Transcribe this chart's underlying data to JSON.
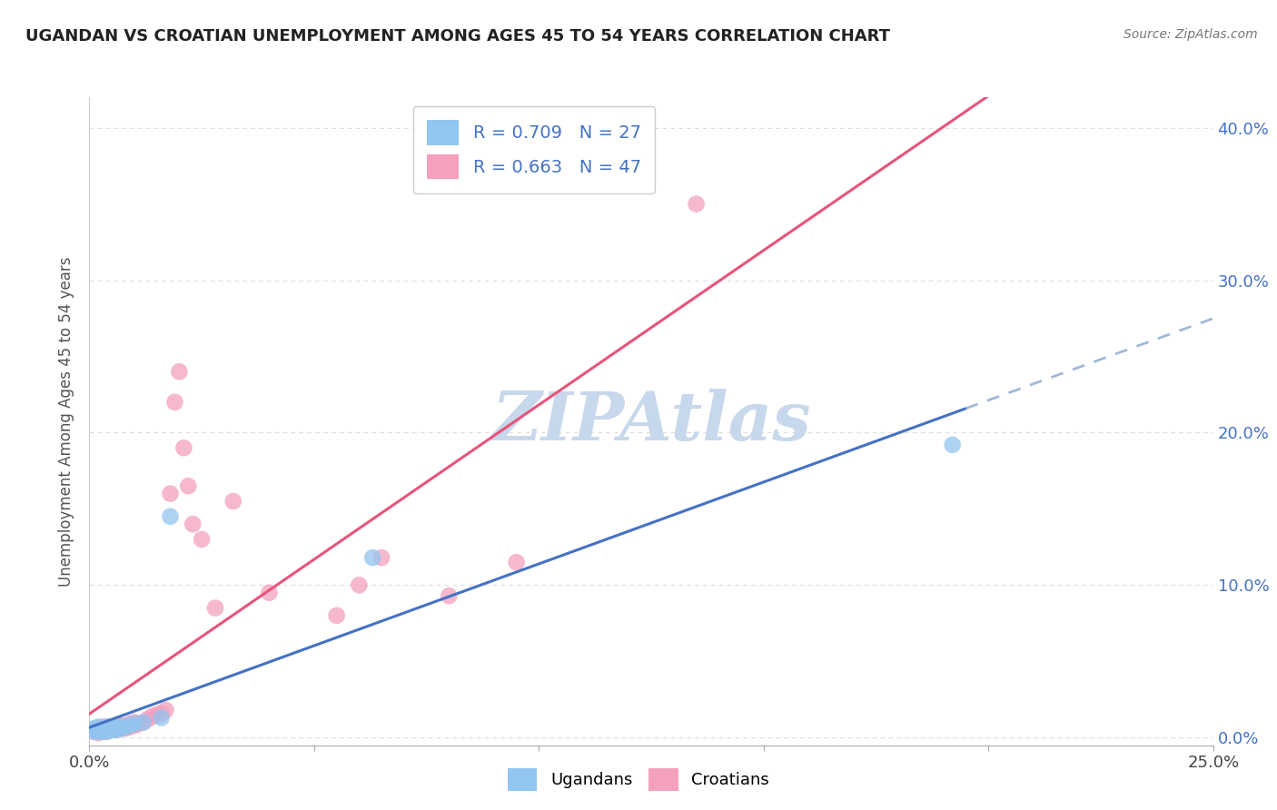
{
  "title": "UGANDAN VS CROATIAN UNEMPLOYMENT AMONG AGES 45 TO 54 YEARS CORRELATION CHART",
  "source": "Source: ZipAtlas.com",
  "ylabel_left": "Unemployment Among Ages 45 to 54 years",
  "xlim": [
    0.0,
    0.25
  ],
  "ylim": [
    -0.005,
    0.42
  ],
  "xticks": [
    0.0,
    0.25
  ],
  "xticks_minor": [
    0.05,
    0.1,
    0.15,
    0.2
  ],
  "yticks_right": [
    0.0,
    0.1,
    0.2,
    0.3,
    0.4
  ],
  "r_ugandan": 0.709,
  "n_ugandan": 27,
  "r_croatian": 0.663,
  "n_croatian": 47,
  "ugandan_color": "#92C5F0",
  "croatian_color": "#F4A0BE",
  "ugandan_line_color": "#4472C4",
  "croatian_line_color": "#E8547A",
  "ugandan_dash_color": "#A0B8D8",
  "watermark": "ZIPAtlas",
  "watermark_color": "#C8D8EC",
  "background_color": "#FFFFFF",
  "grid_color": "#DDDDDD",
  "ugandan_x": [
    0.001,
    0.001,
    0.001,
    0.002,
    0.002,
    0.002,
    0.003,
    0.003,
    0.003,
    0.004,
    0.004,
    0.004,
    0.005,
    0.005,
    0.005,
    0.006,
    0.006,
    0.007,
    0.007,
    0.008,
    0.009,
    0.01,
    0.012,
    0.016,
    0.018,
    0.063,
    0.192
  ],
  "ugandan_y": [
    0.004,
    0.005,
    0.006,
    0.004,
    0.005,
    0.007,
    0.004,
    0.005,
    0.006,
    0.004,
    0.006,
    0.007,
    0.005,
    0.006,
    0.007,
    0.005,
    0.006,
    0.006,
    0.007,
    0.007,
    0.008,
    0.009,
    0.01,
    0.013,
    0.145,
    0.118,
    0.192
  ],
  "croatian_x": [
    0.001,
    0.001,
    0.002,
    0.002,
    0.002,
    0.003,
    0.003,
    0.003,
    0.004,
    0.004,
    0.004,
    0.005,
    0.005,
    0.006,
    0.006,
    0.006,
    0.007,
    0.007,
    0.008,
    0.008,
    0.009,
    0.009,
    0.01,
    0.01,
    0.011,
    0.012,
    0.013,
    0.014,
    0.015,
    0.016,
    0.017,
    0.018,
    0.019,
    0.02,
    0.021,
    0.022,
    0.023,
    0.025,
    0.028,
    0.032,
    0.04,
    0.055,
    0.06,
    0.065,
    0.08,
    0.095,
    0.135
  ],
  "croatian_y": [
    0.004,
    0.005,
    0.003,
    0.005,
    0.006,
    0.004,
    0.005,
    0.007,
    0.004,
    0.006,
    0.007,
    0.005,
    0.007,
    0.005,
    0.006,
    0.008,
    0.006,
    0.008,
    0.006,
    0.008,
    0.007,
    0.009,
    0.008,
    0.01,
    0.009,
    0.01,
    0.012,
    0.014,
    0.015,
    0.016,
    0.018,
    0.16,
    0.22,
    0.24,
    0.19,
    0.165,
    0.14,
    0.13,
    0.085,
    0.155,
    0.095,
    0.08,
    0.1,
    0.118,
    0.093,
    0.115,
    0.35
  ]
}
